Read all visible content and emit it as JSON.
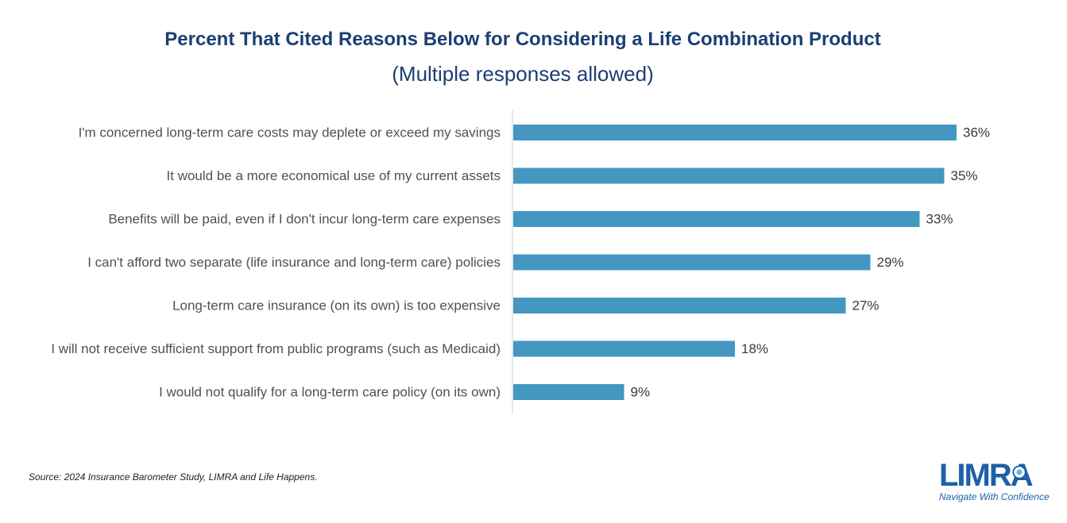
{
  "title": "Percent That Cited Reasons Below for Considering a Life Combination Product",
  "subtitle": "(Multiple responses allowed)",
  "source": "Source: 2024 Insurance Barometer Study, LIMRA and Life Happens.",
  "logo": {
    "text": "LIMRA",
    "tagline": "Navigate With Confidence",
    "color": "#1d5fa8"
  },
  "chart_data": {
    "type": "bar",
    "orientation": "horizontal",
    "categories": [
      "I'm concerned long-term care costs may deplete or exceed my savings",
      "It would be a more economical use of my current assets",
      "Benefits will be paid, even if I don't incur long-term care expenses",
      "I can't afford two separate (life insurance and long-term care) policies",
      "Long-term care insurance (on its own) is too expensive",
      "I will not receive sufficient support from public programs (such as Medicaid)",
      "I would not qualify for a long-term care policy (on its own)"
    ],
    "values": [
      36,
      35,
      33,
      29,
      27,
      18,
      9
    ],
    "value_labels": [
      "36%",
      "35%",
      "33%",
      "29%",
      "27%",
      "18%",
      "9%"
    ],
    "unit": "%",
    "bar_color": "#4497c1",
    "axis_color": "#d0d0d0",
    "grid": false,
    "legend": "none"
  }
}
